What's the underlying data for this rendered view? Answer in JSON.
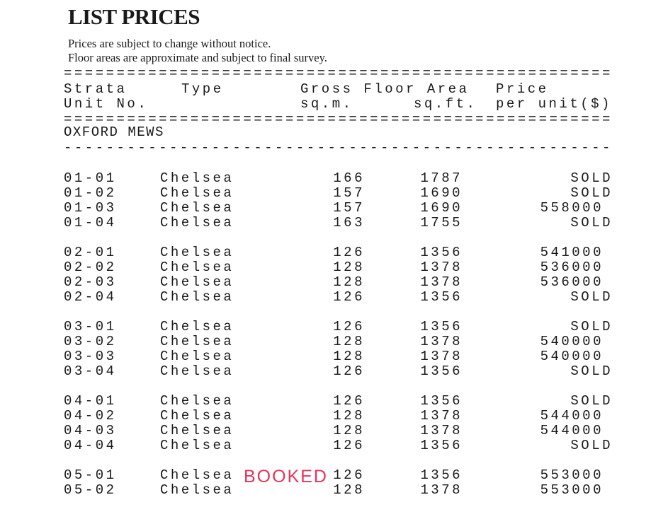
{
  "title": "LIST PRICES",
  "notes": [
    "Prices are subject to change without notice.",
    "Floor areas are approximate and subject to final survey."
  ],
  "rule_double": "====================================================",
  "rule_single": "----------------------------------------------------",
  "headers": {
    "unit_1": "Strata",
    "unit_2": "Unit No.",
    "type": "Type",
    "area": "Gross Floor Area",
    "sqm": "sq.m.",
    "sqft": "sq.ft.",
    "price_1": "Price",
    "price_2": "per unit($)"
  },
  "section": "OXFORD MEWS",
  "groups": [
    [
      [
        "01-01",
        "Chelsea",
        "166",
        "1787",
        "SOLD"
      ],
      [
        "01-02",
        "Chelsea",
        "157",
        "1690",
        "SOLD"
      ],
      [
        "01-03",
        "Chelsea",
        "157",
        "1690",
        "558000"
      ],
      [
        "01-04",
        "Chelsea",
        "163",
        "1755",
        "SOLD"
      ]
    ],
    [
      [
        "02-01",
        "Chelsea",
        "126",
        "1356",
        "541000"
      ],
      [
        "02-02",
        "Chelsea",
        "128",
        "1378",
        "536000"
      ],
      [
        "02-03",
        "Chelsea",
        "128",
        "1378",
        "536000"
      ],
      [
        "02-04",
        "Chelsea",
        "126",
        "1356",
        "SOLD"
      ]
    ],
    [
      [
        "03-01",
        "Chelsea",
        "126",
        "1356",
        "SOLD"
      ],
      [
        "03-02",
        "Chelsea",
        "128",
        "1378",
        "540000"
      ],
      [
        "03-03",
        "Chelsea",
        "128",
        "1378",
        "540000"
      ],
      [
        "03-04",
        "Chelsea",
        "126",
        "1356",
        "SOLD"
      ]
    ],
    [
      [
        "04-01",
        "Chelsea",
        "126",
        "1356",
        "SOLD"
      ],
      [
        "04-02",
        "Chelsea",
        "128",
        "1378",
        "544000"
      ],
      [
        "04-03",
        "Chelsea",
        "128",
        "1378",
        "544000"
      ],
      [
        "04-04",
        "Chelsea",
        "126",
        "1356",
        "SOLD"
      ]
    ],
    [
      [
        "05-01",
        "Chelsea",
        "126",
        "1356",
        "553000"
      ],
      [
        "05-02",
        "Chelsea",
        "128",
        "1378",
        "553000"
      ]
    ]
  ],
  "stamp": {
    "text": "BOOKED",
    "color": "#e8325a"
  }
}
